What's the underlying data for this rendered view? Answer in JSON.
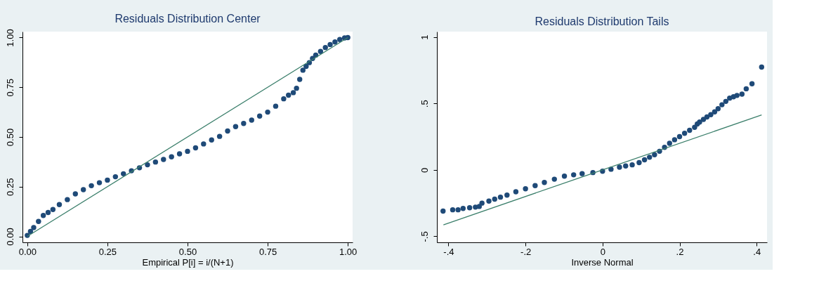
{
  "chart_data": [
    {
      "type": "scatter",
      "title": "Residuals Distribution Center",
      "xlabel": "Empirical P[i] = i/(N+1)",
      "marker": "circle",
      "legend": false,
      "grid": false,
      "xlim": [
        -0.015,
        1.015
      ],
      "ylim": [
        -0.03,
        1.03
      ],
      "xticks": [
        {
          "value": 0,
          "label": "0.00"
        },
        {
          "value": 0.25,
          "label": "0.25"
        },
        {
          "value": 0.5,
          "label": "0.50"
        },
        {
          "value": 0.75,
          "label": "0.75"
        },
        {
          "value": 1,
          "label": "1.00"
        }
      ],
      "yticks": [
        {
          "value": 0,
          "label": "0.00"
        },
        {
          "value": 0.25,
          "label": "0.25"
        },
        {
          "value": 0.5,
          "label": "0.50"
        },
        {
          "value": 0.75,
          "label": "0.75"
        },
        {
          "value": 1,
          "label": "1.00"
        }
      ],
      "series": [
        {
          "type": "scatter",
          "color": "#1f4a78",
          "x": [
            0,
            0.01,
            0.02,
            0.035,
            0.05,
            0.065,
            0.08,
            0.1,
            0.125,
            0.15,
            0.175,
            0.2,
            0.225,
            0.25,
            0.275,
            0.3,
            0.325,
            0.35,
            0.375,
            0.4,
            0.425,
            0.45,
            0.475,
            0.5,
            0.525,
            0.55,
            0.575,
            0.6,
            0.625,
            0.65,
            0.675,
            0.7,
            0.725,
            0.75,
            0.775,
            0.8,
            0.815,
            0.83,
            0.84,
            0.85,
            0.86,
            0.87,
            0.88,
            0.89,
            0.9,
            0.915,
            0.93,
            0.945,
            0.96,
            0.975,
            0.99,
            1.0
          ],
          "values": [
            0.005,
            0.025,
            0.044,
            0.075,
            0.105,
            0.12,
            0.135,
            0.16,
            0.185,
            0.214,
            0.235,
            0.255,
            0.27,
            0.283,
            0.3,
            0.315,
            0.33,
            0.345,
            0.36,
            0.374,
            0.387,
            0.4,
            0.415,
            0.428,
            0.445,
            0.465,
            0.485,
            0.503,
            0.53,
            0.552,
            0.568,
            0.585,
            0.605,
            0.625,
            0.655,
            0.692,
            0.71,
            0.723,
            0.745,
            0.79,
            0.836,
            0.855,
            0.874,
            0.895,
            0.912,
            0.93,
            0.95,
            0.965,
            0.978,
            0.99,
            0.998,
            1.0
          ]
        },
        {
          "type": "line",
          "color": "#3b7f6b",
          "marker": "none",
          "line_style": "solid",
          "x": [
            0,
            1
          ],
          "values": [
            0,
            1
          ]
        }
      ]
    },
    {
      "type": "scatter",
      "title": "Residuals Distribution Tails",
      "xlabel": "Inverse Normal",
      "marker": "circle",
      "legend": false,
      "grid": false,
      "xlim": [
        -0.43,
        0.427
      ],
      "ylim": [
        -0.545,
        1.04
      ],
      "xticks": [
        {
          "value": -0.4,
          "label": "-.4"
        },
        {
          "value": -0.2,
          "label": "-.2"
        },
        {
          "value": 0,
          "label": "0"
        },
        {
          "value": 0.2,
          "label": ".2"
        },
        {
          "value": 0.4,
          "label": ".4"
        }
      ],
      "yticks": [
        {
          "value": -0.5,
          "label": "-.5"
        },
        {
          "value": 0,
          "label": "0"
        },
        {
          "value": 0.5,
          "label": ".5"
        },
        {
          "value": 1,
          "label": "1"
        }
      ],
      "series": [
        {
          "type": "scatter",
          "color": "#1f4a78",
          "x": [
            -0.414,
            -0.389,
            -0.375,
            -0.362,
            -0.345,
            -0.33,
            -0.32,
            -0.313,
            -0.295,
            -0.28,
            -0.265,
            -0.248,
            -0.225,
            -0.2,
            -0.175,
            -0.151,
            -0.125,
            -0.099,
            -0.075,
            -0.053,
            -0.025,
            0,
            0.022,
            0.044,
            0.06,
            0.077,
            0.095,
            0.109,
            0.122,
            0.135,
            0.148,
            0.161,
            0.174,
            0.187,
            0.2,
            0.213,
            0.226,
            0.239,
            0.246,
            0.252,
            0.262,
            0.271,
            0.281,
            0.291,
            0.3,
            0.31,
            0.32,
            0.33,
            0.34,
            0.349,
            0.362,
            0.373,
            0.388,
            0.413
          ],
          "values": [
            -0.31,
            -0.3,
            -0.3,
            -0.29,
            -0.285,
            -0.28,
            -0.275,
            -0.25,
            -0.235,
            -0.22,
            -0.205,
            -0.19,
            -0.165,
            -0.142,
            -0.118,
            -0.095,
            -0.07,
            -0.047,
            -0.037,
            -0.028,
            -0.02,
            -0.01,
            0.005,
            0.02,
            0.03,
            0.038,
            0.055,
            0.076,
            0.095,
            0.114,
            0.14,
            0.17,
            0.2,
            0.227,
            0.25,
            0.275,
            0.298,
            0.32,
            0.345,
            0.36,
            0.38,
            0.398,
            0.415,
            0.436,
            0.46,
            0.49,
            0.515,
            0.54,
            0.55,
            0.56,
            0.57,
            0.61,
            0.648,
            0.773
          ]
        },
        {
          "type": "line",
          "color": "#3b7f6b",
          "marker": "none",
          "line_style": "solid",
          "x": [
            -0.413,
            0.413
          ],
          "values": [
            -0.413,
            0.413
          ]
        }
      ]
    }
  ]
}
